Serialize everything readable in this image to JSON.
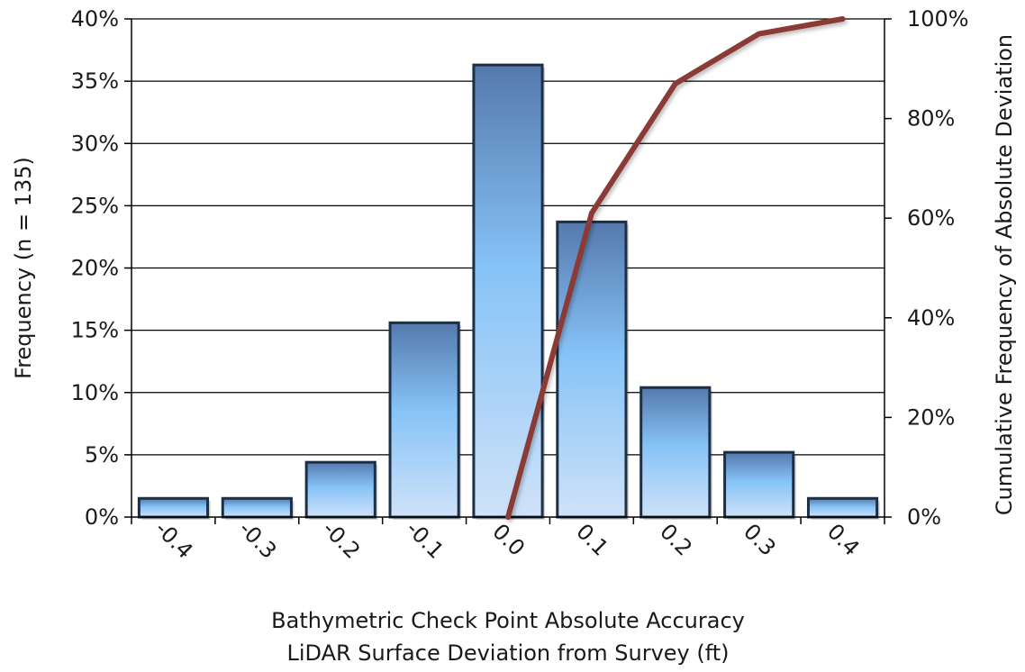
{
  "chart_data": {
    "type": "bar",
    "title": "",
    "xlabel_lines": [
      "Bathymetric Check Point Absolute Accuracy",
      "LiDAR Surface Deviation from Survey (ft)"
    ],
    "ylabel": "Frequency (n = 135)",
    "y2label": "Cumulative Frequency of Absolute Deviation",
    "categories": [
      "-0.4",
      "-0.3",
      "-0.2",
      "-0.1",
      "0.0",
      "0.1",
      "0.2",
      "0.3",
      "0.4"
    ],
    "series": [
      {
        "type": "bar",
        "values": [
          1.5,
          1.5,
          4.4,
          15.6,
          36.3,
          23.7,
          10.4,
          5.2,
          1.5
        ],
        "color": "#5b8fd0"
      },
      {
        "type": "line",
        "axis": "y2",
        "x": [
          0.0,
          0.1,
          0.2,
          0.3,
          0.4
        ],
        "values": [
          0,
          61,
          87,
          97,
          100
        ],
        "color": "#8b3a36"
      }
    ],
    "ylim": [
      0,
      40
    ],
    "y2lim": [
      0,
      100
    ],
    "yticks": [
      0,
      5,
      10,
      15,
      20,
      25,
      30,
      35,
      40
    ],
    "y2ticks": [
      0,
      20,
      40,
      60,
      80,
      100
    ],
    "ytick_labels": [
      "0%",
      "5%",
      "10%",
      "15%",
      "20%",
      "25%",
      "30%",
      "35%",
      "40%"
    ],
    "y2tick_labels": [
      "0%",
      "20%",
      "40%",
      "60%",
      "80%",
      "100%"
    ],
    "grid": true,
    "legend": "none"
  }
}
